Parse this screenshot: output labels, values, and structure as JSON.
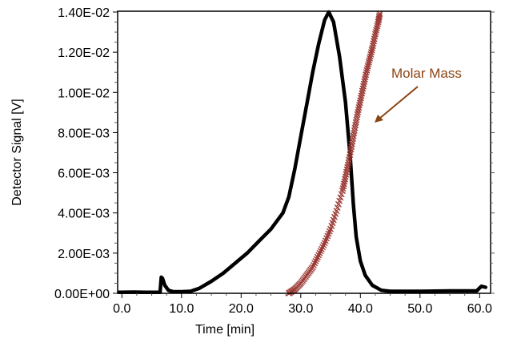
{
  "chart_data": {
    "type": "line",
    "title": "",
    "xlabel": "Time [min]",
    "ylabel": "Detector Signal [V]",
    "xlim": [
      -1.5,
      62
    ],
    "ylim": [
      0,
      0.014
    ],
    "x_ticks": [
      0,
      10,
      20,
      30,
      40,
      50,
      60
    ],
    "x_tick_labels": [
      "0.0",
      "10.0",
      "20.0",
      "30.0",
      "40.0",
      "50.0",
      "60.0"
    ],
    "y_ticks": [
      0,
      0.002,
      0.004,
      0.006,
      0.008,
      0.01,
      0.012,
      0.014
    ],
    "y_tick_labels": [
      "0.00E+00",
      "2.00E-03",
      "4.00E-03",
      "6.00E-03",
      "8.00E-03",
      "1.00E-02",
      "1.20E-02",
      "1.40E-02"
    ],
    "grid": false,
    "series": [
      {
        "name": "Detector Signal",
        "color": "#000000",
        "marker": "line",
        "x": [
          -0.5,
          2,
          4,
          6.4,
          6.6,
          6.8,
          7.2,
          7.8,
          8.6,
          10,
          11.5,
          13,
          15,
          17,
          19,
          21,
          23,
          25,
          27,
          28,
          29,
          30,
          31,
          32,
          33,
          34,
          34.7,
          35.5,
          36.5,
          37.5,
          38.3,
          38.8,
          39.3,
          40,
          40.8,
          42,
          43.5,
          45,
          50,
          55,
          59.5,
          60.3,
          61
        ],
        "y": [
          5e-05,
          6e-05,
          5e-05,
          5e-05,
          0.0008,
          0.00075,
          0.0004,
          0.00015,
          8e-05,
          8e-05,
          0.0001,
          0.00025,
          0.0006,
          0.001,
          0.0015,
          0.002,
          0.0026,
          0.0032,
          0.004,
          0.0048,
          0.0062,
          0.0078,
          0.0094,
          0.011,
          0.0124,
          0.0136,
          0.014,
          0.0135,
          0.0118,
          0.0095,
          0.0068,
          0.0045,
          0.0028,
          0.0016,
          0.0009,
          0.0004,
          0.00015,
          0.0001,
          0.0001,
          0.00012,
          0.00012,
          0.00035,
          0.0003
        ]
      },
      {
        "name": "Molar Mass",
        "color": "#9b3a35",
        "marker": "x",
        "x": [
          28,
          29,
          30,
          31,
          32,
          33,
          34,
          35,
          36,
          37,
          37.5,
          38,
          38.5,
          39,
          39.5,
          40,
          40.5,
          41,
          41.5,
          42,
          42.5,
          43,
          43.3
        ],
        "y": [
          0,
          0.0002,
          0.0005,
          0.0009,
          0.0013,
          0.0019,
          0.0025,
          0.0032,
          0.0041,
          0.0051,
          0.0058,
          0.0065,
          0.0073,
          0.0081,
          0.0089,
          0.0096,
          0.0103,
          0.011,
          0.0116,
          0.0122,
          0.0129,
          0.0135,
          0.014
        ]
      }
    ],
    "annotations": [
      {
        "text": "Molar Mass",
        "color": "#8b4513",
        "points_to": "Molar Mass series"
      }
    ]
  }
}
